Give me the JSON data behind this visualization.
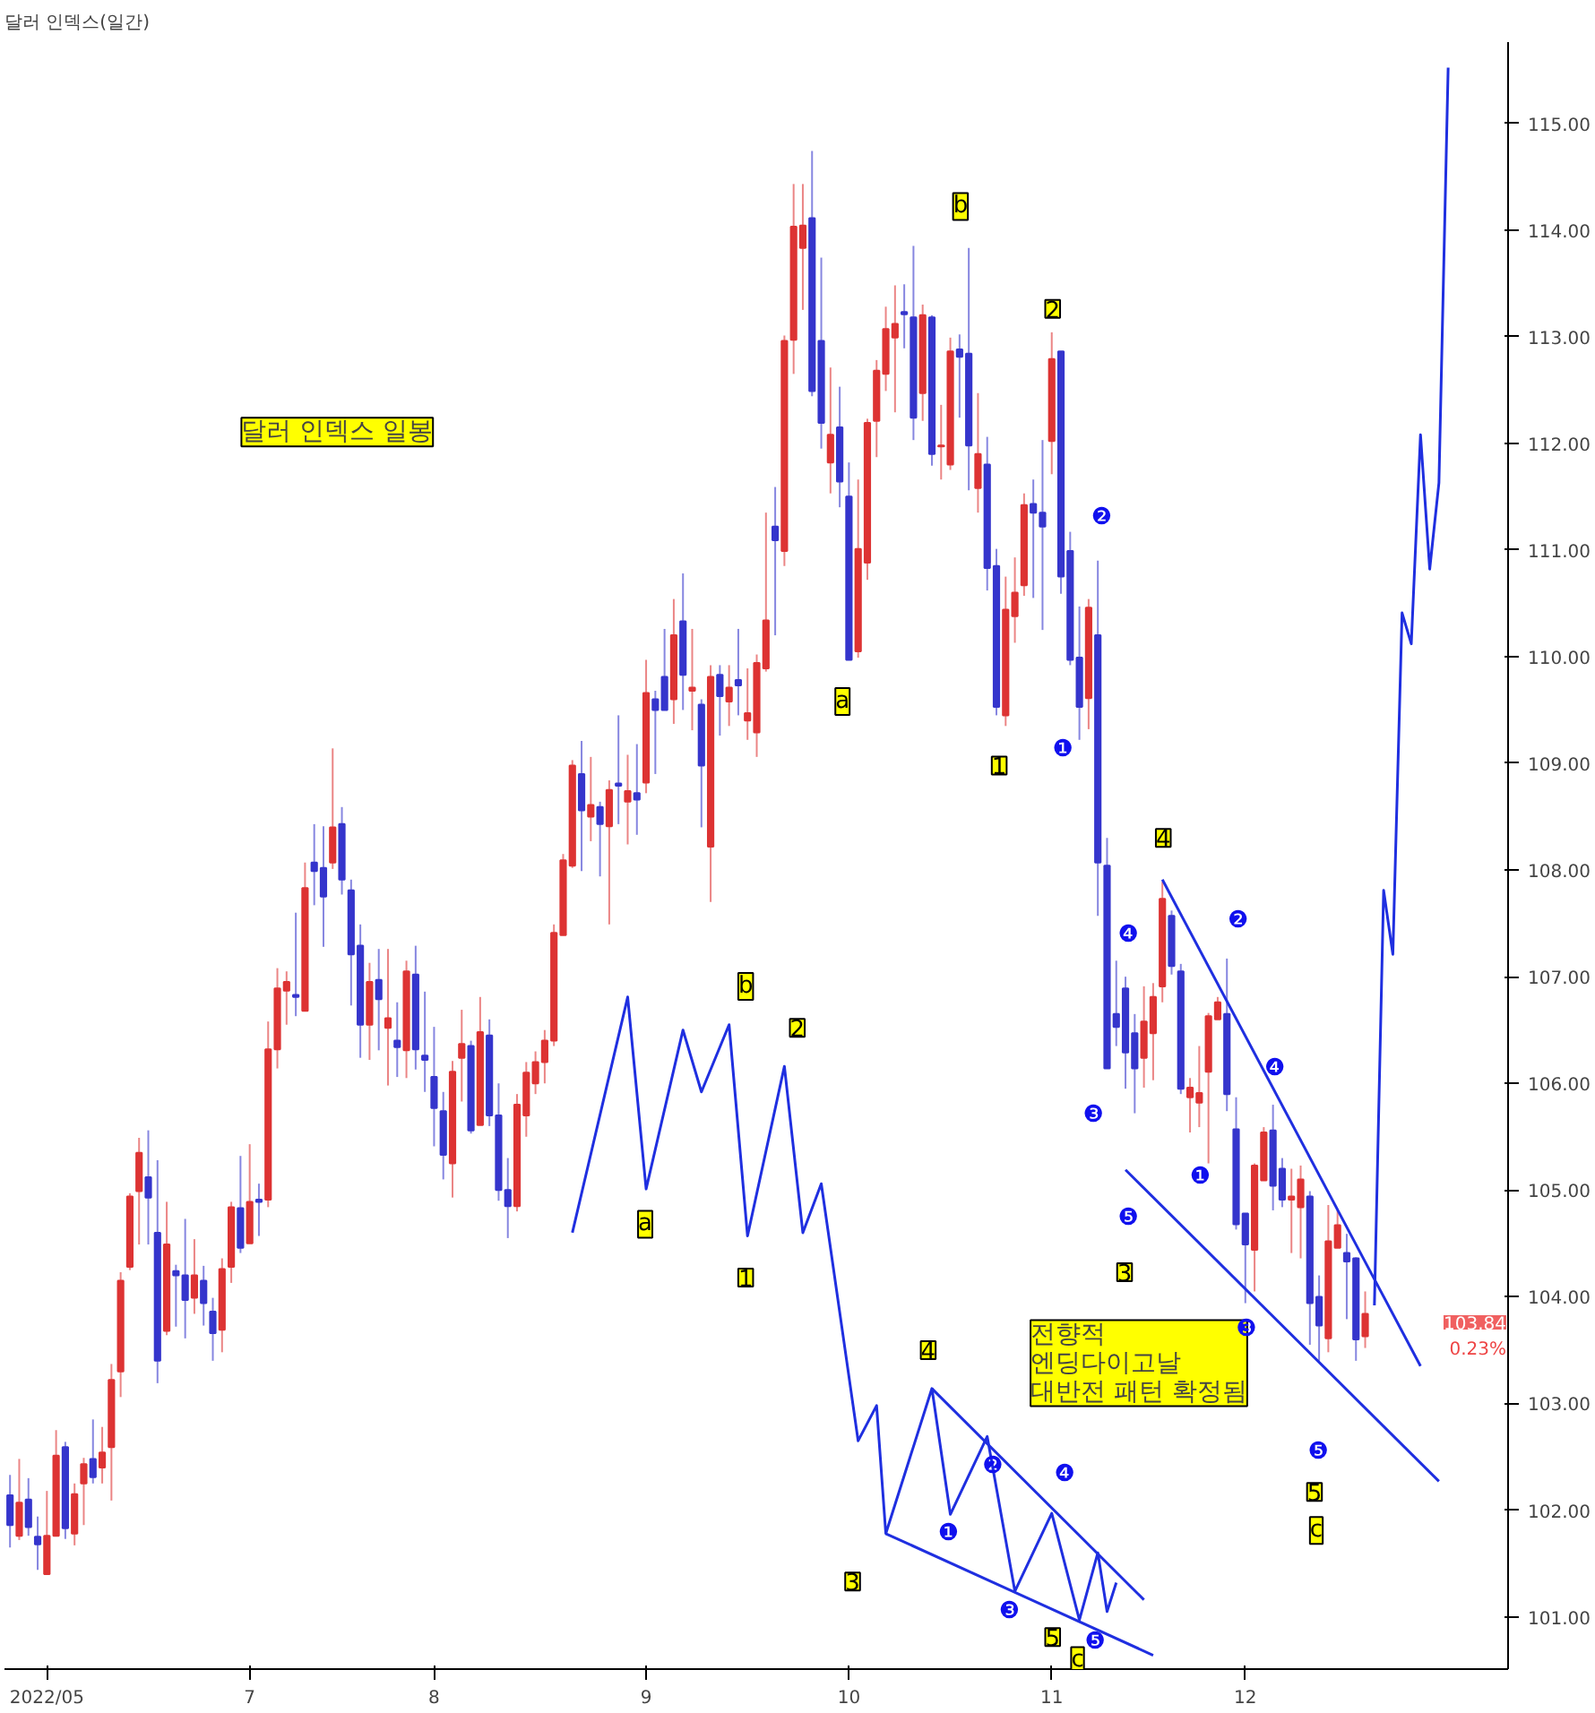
{
  "chart_data": {
    "type": "candlestick",
    "title": "달러 인덱스(일간)",
    "categories": [
      null,
      null,
      null,
      null,
      "2022/05",
      null,
      null,
      null,
      null,
      null,
      null,
      null,
      null,
      null,
      null,
      null,
      null,
      null,
      null,
      null,
      null,
      null,
      null,
      null,
      null,
      null,
      "7",
      null,
      null,
      null,
      null,
      null,
      null,
      null,
      null,
      null,
      null,
      null,
      null,
      null,
      null,
      null,
      null,
      null,
      null,
      null,
      "8",
      null,
      null,
      null,
      null,
      null,
      null,
      null,
      null,
      null,
      null,
      null,
      null,
      null,
      null,
      null,
      null,
      null,
      null,
      null,
      null,
      null,
      null,
      "9",
      null,
      null,
      null,
      null,
      null,
      null,
      null,
      null,
      null,
      null,
      null,
      null,
      null,
      null,
      null,
      null,
      null,
      null,
      null,
      null,
      null,
      "10",
      null,
      null,
      null,
      null,
      null,
      null,
      null,
      null,
      null,
      null,
      null,
      null,
      null,
      null,
      null,
      null,
      null,
      null,
      null,
      null,
      null,
      "11",
      null,
      null,
      null,
      null,
      null,
      null,
      null,
      null,
      null,
      null,
      null,
      null,
      null,
      null,
      null,
      null,
      null,
      null,
      null,
      null,
      "12",
      null,
      null,
      null,
      null,
      null,
      null,
      null,
      null,
      null,
      null,
      null,
      null,
      null,
      null,
      null,
      null,
      null,
      null,
      null,
      null,
      null,
      null
    ],
    "ohlc": [
      [
        102.14,
        102.33,
        101.65,
        101.86
      ],
      [
        101.76,
        102.48,
        101.72,
        102.07
      ],
      [
        102.1,
        102.3,
        101.76,
        101.84
      ],
      [
        101.75,
        101.94,
        101.44,
        101.68
      ],
      [
        101.4,
        102.18,
        101.4,
        101.76
      ],
      [
        101.76,
        102.75,
        101.76,
        102.51
      ],
      [
        102.59,
        102.64,
        101.73,
        101.83
      ],
      [
        101.78,
        102.25,
        101.67,
        102.15
      ],
      [
        102.25,
        102.49,
        101.86,
        102.43
      ],
      [
        102.48,
        102.85,
        102.25,
        102.31
      ],
      [
        102.4,
        102.78,
        102.25,
        102.54
      ],
      [
        102.59,
        103.37,
        102.09,
        103.22
      ],
      [
        103.3,
        104.23,
        103.06,
        104.15
      ],
      [
        104.28,
        104.97,
        104.25,
        104.94
      ],
      [
        104.99,
        105.49,
        104.49,
        105.35
      ],
      [
        105.12,
        105.56,
        104.49,
        104.93
      ],
      [
        104.6,
        105.28,
        103.19,
        103.4
      ],
      [
        103.68,
        104.89,
        103.64,
        104.49
      ],
      [
        104.24,
        104.3,
        103.72,
        104.2
      ],
      [
        104.2,
        104.73,
        103.61,
        103.97
      ],
      [
        103.99,
        104.54,
        103.84,
        104.2
      ],
      [
        104.15,
        104.29,
        103.73,
        103.94
      ],
      [
        103.86,
        103.99,
        103.4,
        103.66
      ],
      [
        103.69,
        104.36,
        103.48,
        104.26
      ],
      [
        104.28,
        104.89,
        104.13,
        104.84
      ],
      [
        104.83,
        105.32,
        104.41,
        104.46
      ],
      [
        104.5,
        105.43,
        104.5,
        104.89
      ],
      [
        104.91,
        105.06,
        104.57,
        104.89
      ],
      [
        104.91,
        106.58,
        104.84,
        106.32
      ],
      [
        106.32,
        107.08,
        106.14,
        106.89
      ],
      [
        106.87,
        107.05,
        106.55,
        106.95
      ],
      [
        106.83,
        107.6,
        106.63,
        106.81
      ],
      [
        106.68,
        108.07,
        106.68,
        107.83
      ],
      [
        108.07,
        108.43,
        107.67,
        107.99
      ],
      [
        108.02,
        108.41,
        107.28,
        107.75
      ],
      [
        108.07,
        109.14,
        108.01,
        108.4
      ],
      [
        108.43,
        108.59,
        107.77,
        107.91
      ],
      [
        107.81,
        107.91,
        106.73,
        107.21
      ],
      [
        107.29,
        107.49,
        106.24,
        106.55
      ],
      [
        106.55,
        107.13,
        106.22,
        106.95
      ],
      [
        106.97,
        107.26,
        106.31,
        106.79
      ],
      [
        106.52,
        107.26,
        105.98,
        106.61
      ],
      [
        106.4,
        106.76,
        106.06,
        106.34
      ],
      [
        106.31,
        107.15,
        106.05,
        107.05
      ],
      [
        107.02,
        107.29,
        106.13,
        106.32
      ],
      [
        106.26,
        106.86,
        105.92,
        106.22
      ],
      [
        106.06,
        106.53,
        105.41,
        105.77
      ],
      [
        105.74,
        105.92,
        105.1,
        105.33
      ],
      [
        105.25,
        106.21,
        104.93,
        106.11
      ],
      [
        106.24,
        106.69,
        105.83,
        106.37
      ],
      [
        106.35,
        106.4,
        105.53,
        105.56
      ],
      [
        105.61,
        106.81,
        105.61,
        106.48
      ],
      [
        106.45,
        106.6,
        105.6,
        105.7
      ],
      [
        105.7,
        106.0,
        104.9,
        105.0
      ],
      [
        105.0,
        105.3,
        104.55,
        104.85
      ],
      [
        104.85,
        105.9,
        104.8,
        105.8
      ],
      [
        105.7,
        106.2,
        105.5,
        106.1
      ],
      [
        106.0,
        106.3,
        105.9,
        106.2
      ],
      [
        106.2,
        106.5,
        106.0,
        106.4
      ],
      [
        106.4,
        107.49,
        106.35,
        107.41
      ],
      [
        107.39,
        108.15,
        107.39,
        108.09
      ],
      [
        108.04,
        109.03,
        108.02,
        108.98
      ],
      [
        108.9,
        109.21,
        107.99,
        108.56
      ],
      [
        108.5,
        109.06,
        108.27,
        108.61
      ],
      [
        108.59,
        108.64,
        107.94,
        108.43
      ],
      [
        108.41,
        108.84,
        107.49,
        108.75
      ],
      [
        108.81,
        109.45,
        108.43,
        108.79
      ],
      [
        108.64,
        109.08,
        108.24,
        108.74
      ],
      [
        108.72,
        109.18,
        108.33,
        108.66
      ],
      [
        108.82,
        109.97,
        108.72,
        109.66
      ],
      [
        109.6,
        109.68,
        108.9,
        109.5
      ],
      [
        109.81,
        110.26,
        109.5,
        109.5
      ],
      [
        109.6,
        110.54,
        109.37,
        110.2
      ],
      [
        110.33,
        110.78,
        109.5,
        109.83
      ],
      [
        109.68,
        110.26,
        109.31,
        109.71
      ],
      [
        109.55,
        109.6,
        108.4,
        108.98
      ],
      [
        108.22,
        109.92,
        107.7,
        109.81
      ],
      [
        109.83,
        109.92,
        109.26,
        109.63
      ],
      [
        109.58,
        109.92,
        109.35,
        109.71
      ],
      [
        109.78,
        110.26,
        109.45,
        109.73
      ],
      [
        109.4,
        109.89,
        109.22,
        109.47
      ],
      [
        109.29,
        110.02,
        109.06,
        109.94
      ],
      [
        109.89,
        111.35,
        109.86,
        110.34
      ],
      [
        111.22,
        111.59,
        110.2,
        111.09
      ],
      [
        110.99,
        113.01,
        110.85,
        112.96
      ],
      [
        112.97,
        114.43,
        112.65,
        114.03
      ],
      [
        113.83,
        114.43,
        113.25,
        114.04
      ],
      [
        114.11,
        114.74,
        112.44,
        112.49
      ],
      [
        112.96,
        113.74,
        111.95,
        112.19
      ],
      [
        111.82,
        112.71,
        111.53,
        112.08
      ],
      [
        112.15,
        112.53,
        111.4,
        111.64
      ],
      [
        111.5,
        111.82,
        109.97,
        109.97
      ],
      [
        110.05,
        111.66,
        109.99,
        111.01
      ],
      [
        110.88,
        112.23,
        110.72,
        112.19
      ],
      [
        112.21,
        112.78,
        111.87,
        112.68
      ],
      [
        112.65,
        113.28,
        112.49,
        113.07
      ],
      [
        112.99,
        113.48,
        112.29,
        113.12
      ],
      [
        113.23,
        113.49,
        112.89,
        113.21
      ],
      [
        113.18,
        113.85,
        112.03,
        112.24
      ],
      [
        112.47,
        113.3,
        112.21,
        113.2
      ],
      [
        113.18,
        113.2,
        111.79,
        111.9
      ],
      [
        111.97,
        112.36,
        111.66,
        111.98
      ],
      [
        111.8,
        112.99,
        111.75,
        112.86
      ],
      [
        112.88,
        113.02,
        112.24,
        112.81
      ],
      [
        112.84,
        113.83,
        111.56,
        111.98
      ],
      [
        111.58,
        112.47,
        111.35,
        111.9
      ],
      [
        111.8,
        112.06,
        110.62,
        110.83
      ],
      [
        110.85,
        111.01,
        109.45,
        109.53
      ],
      [
        109.45,
        110.75,
        109.35,
        110.44
      ],
      [
        110.38,
        110.93,
        110.13,
        110.6
      ],
      [
        110.67,
        111.53,
        110.57,
        111.42
      ],
      [
        111.43,
        111.66,
        110.55,
        111.35
      ],
      [
        111.35,
        112.03,
        110.25,
        111.22
      ],
      [
        112.02,
        113.04,
        111.71,
        112.79
      ],
      [
        112.86,
        112.86,
        110.59,
        110.75
      ],
      [
        110.99,
        111.17,
        109.92,
        109.97
      ],
      [
        109.99,
        110.47,
        109.22,
        109.53
      ],
      [
        109.61,
        110.54,
        109.32,
        110.46
      ],
      [
        110.2,
        110.9,
        107.57,
        108.07
      ],
      [
        108.04,
        108.3,
        106.14,
        106.14
      ],
      [
        106.65,
        107.15,
        106.35,
        106.53
      ],
      [
        106.89,
        107.0,
        105.95,
        106.29
      ],
      [
        106.47,
        106.65,
        105.72,
        106.14
      ],
      [
        106.24,
        106.91,
        105.96,
        106.58
      ],
      [
        106.47,
        106.94,
        106.03,
        106.81
      ],
      [
        106.91,
        107.89,
        106.76,
        107.73
      ],
      [
        107.57,
        107.62,
        107.02,
        107.1
      ],
      [
        107.05,
        107.12,
        105.9,
        105.95
      ],
      [
        105.87,
        106.05,
        105.54,
        105.96
      ],
      [
        105.82,
        106.35,
        105.59,
        105.91
      ],
      [
        106.11,
        106.66,
        105.25,
        106.63
      ],
      [
        106.6,
        106.81,
        106.6,
        106.76
      ],
      [
        106.65,
        107.17,
        105.74,
        105.9
      ],
      [
        105.57,
        105.87,
        104.63,
        104.68
      ],
      [
        104.78,
        104.78,
        103.94,
        104.49
      ],
      [
        104.44,
        105.25,
        104.05,
        105.23
      ],
      [
        105.09,
        105.59,
        105.09,
        105.54
      ],
      [
        105.56,
        105.8,
        104.81,
        105.04
      ],
      [
        105.2,
        105.3,
        104.84,
        104.91
      ],
      [
        104.91,
        105.2,
        104.41,
        104.94
      ],
      [
        104.84,
        105.23,
        104.36,
        105.1
      ],
      [
        104.94,
        104.99,
        103.55,
        103.94
      ],
      [
        104.0,
        104.2,
        103.4,
        103.73
      ],
      [
        103.61,
        104.86,
        103.48,
        104.52
      ],
      [
        104.46,
        104.81,
        104.46,
        104.67
      ],
      [
        104.41,
        104.59,
        103.79,
        104.33
      ],
      [
        104.36,
        104.37,
        103.4,
        103.6
      ],
      [
        103.63,
        104.05,
        103.52,
        103.84
      ],
      null,
      null,
      null,
      null,
      null,
      null,
      null,
      null,
      null
    ],
    "colors": [
      "#3535cc",
      "#dd3333",
      "#3535cc",
      "#3535cc",
      "#dd3333",
      "#dd3333",
      "#3535cc",
      "#dd3333",
      "#dd3333",
      "#3535cc",
      "#dd3333",
      "#dd3333",
      "#dd3333",
      "#dd3333",
      "#dd3333",
      "#3535cc",
      "#3535cc",
      "#dd3333",
      "#3535cc",
      "#3535cc",
      "#dd3333",
      "#3535cc",
      "#3535cc",
      "#dd3333",
      "#dd3333",
      "#3535cc",
      "#dd3333",
      "#3535cc",
      "#dd3333",
      "#dd3333",
      "#dd3333",
      "#3535cc",
      "#dd3333",
      "#3535cc",
      "#3535cc",
      "#dd3333",
      "#3535cc",
      "#3535cc",
      "#3535cc",
      "#dd3333",
      "#3535cc",
      "#dd3333",
      "#3535cc",
      "#dd3333",
      "#3535cc",
      "#3535cc",
      "#3535cc",
      "#3535cc",
      "#dd3333",
      "#dd3333",
      "#3535cc",
      "#dd3333",
      "#3535cc",
      "#3535cc",
      "#3535cc",
      "#dd3333",
      "#dd3333",
      "#dd3333",
      "#dd3333",
      "#dd3333",
      "#dd3333",
      "#dd3333",
      "#3535cc",
      "#dd3333",
      "#3535cc",
      "#dd3333",
      "#3535cc",
      "#dd3333",
      "#3535cc",
      "#dd3333",
      "#3535cc",
      "#3535cc",
      "#dd3333",
      "#3535cc",
      "#dd3333",
      "#3535cc",
      "#dd3333",
      "#3535cc",
      "#dd3333",
      "#3535cc",
      "#dd3333",
      "#dd3333",
      "#dd3333",
      "#3535cc",
      "#dd3333",
      "#dd3333",
      "#dd3333",
      "#3535cc",
      "#3535cc",
      "#dd3333",
      "#3535cc",
      "#3535cc",
      "#dd3333",
      "#dd3333",
      "#dd3333",
      "#dd3333",
      "#dd3333",
      "#3535cc",
      "#3535cc",
      "#dd3333",
      "#3535cc",
      "#dd3333",
      "#dd3333",
      "#3535cc",
      "#3535cc",
      "#dd3333",
      "#3535cc",
      "#3535cc",
      "#dd3333",
      "#dd3333",
      "#dd3333",
      "#3535cc",
      "#3535cc",
      "#dd3333",
      "#3535cc",
      "#3535cc",
      "#3535cc",
      "#dd3333",
      "#3535cc",
      "#3535cc",
      "#3535cc",
      "#3535cc",
      "#3535cc",
      "#dd3333",
      "#dd3333",
      "#dd3333",
      "#3535cc",
      "#3535cc",
      "#dd3333",
      "#dd3333",
      "#dd3333",
      "#dd3333",
      "#3535cc",
      "#3535cc",
      "#3535cc",
      "#dd3333",
      "#dd3333",
      "#3535cc",
      "#3535cc",
      "#dd3333",
      "#dd3333",
      "#3535cc",
      "#3535cc",
      "#dd3333",
      "#dd3333",
      "#3535cc",
      "#3535cc",
      "#dd3333",
      null,
      null,
      null,
      null,
      null,
      null,
      null,
      null,
      null
    ],
    "series": [
      {
        "type": "line",
        "color": "#1f2fe0",
        "values": [
          null,
          null,
          null,
          null,
          null,
          null,
          null,
          null,
          null,
          null,
          null,
          null,
          null,
          null,
          null,
          null,
          null,
          null,
          null,
          null,
          null,
          null,
          null,
          null,
          null,
          null,
          null,
          null,
          null,
          null,
          null,
          null,
          null,
          null,
          null,
          null,
          null,
          null,
          null,
          null,
          null,
          null,
          null,
          null,
          null,
          null,
          null,
          null,
          null,
          null,
          null,
          null,
          null,
          null,
          null,
          null,
          null,
          null,
          null,
          null,
          null,
          104.6,
          null,
          null,
          null,
          null,
          null,
          106.81,
          null,
          105.01,
          null,
          null,
          null,
          106.5,
          null,
          105.92,
          null,
          null,
          106.55,
          null,
          104.57,
          null,
          null,
          null,
          106.16,
          null,
          104.6,
          null,
          105.06,
          null,
          null,
          null,
          102.65,
          null,
          102.98,
          101.78,
          null,
          null,
          null,
          null,
          103.14,
          null,
          101.96,
          null,
          null,
          null,
          102.69,
          null,
          null,
          101.24,
          null,
          null,
          null,
          101.97,
          null,
          null,
          100.97,
          null,
          101.6,
          101.05,
          101.32,
          null,
          null,
          null,
          null,
          null,
          null,
          null,
          null,
          null,
          null,
          null,
          null,
          null,
          null,
          null,
          null,
          null,
          null,
          null,
          null,
          null,
          null,
          null,
          null,
          null,
          null,
          null,
          null,
          null,
          null,
          null,
          null,
          null,
          null,
          null,
          null
        ]
      },
      {
        "type": "line",
        "color": "#1f2fe0",
        "values": [
          null,
          null,
          null,
          null,
          null,
          null,
          null,
          null,
          null,
          null,
          null,
          null,
          null,
          null,
          null,
          null,
          null,
          null,
          null,
          null,
          null,
          null,
          null,
          null,
          null,
          null,
          null,
          null,
          null,
          null,
          null,
          null,
          null,
          null,
          null,
          null,
          null,
          null,
          null,
          null,
          null,
          null,
          null,
          null,
          null,
          null,
          null,
          null,
          null,
          null,
          null,
          null,
          null,
          null,
          null,
          null,
          null,
          null,
          null,
          null,
          null,
          null,
          null,
          null,
          null,
          null,
          null,
          null,
          null,
          null,
          null,
          null,
          null,
          null,
          null,
          null,
          null,
          null,
          null,
          null,
          null,
          null,
          null,
          null,
          null,
          null,
          null,
          null,
          null,
          null,
          null,
          null,
          null,
          null,
          null,
          null,
          null,
          null,
          null,
          null,
          103.14,
          null,
          null,
          null,
          null,
          null,
          null,
          null,
          null,
          null,
          null,
          null,
          null,
          null,
          null,
          null,
          null,
          null,
          null,
          null,
          null,
          null,
          null,
          101.16,
          null,
          null,
          null,
          null,
          null,
          null,
          null,
          null,
          null,
          null,
          null,
          null,
          null,
          null,
          null,
          null,
          null,
          null,
          null,
          null,
          null,
          null,
          null,
          null,
          null,
          null,
          null,
          null,
          null,
          null,
          null,
          null,
          null
        ]
      },
      {
        "type": "line",
        "color": "#1f2fe0",
        "values": [
          null,
          null,
          null,
          null,
          null,
          null,
          null,
          null,
          null,
          null,
          null,
          null,
          null,
          null,
          null,
          null,
          null,
          null,
          null,
          null,
          null,
          null,
          null,
          null,
          null,
          null,
          null,
          null,
          null,
          null,
          null,
          null,
          null,
          null,
          null,
          null,
          null,
          null,
          null,
          null,
          null,
          null,
          null,
          null,
          null,
          null,
          null,
          null,
          null,
          null,
          null,
          null,
          null,
          null,
          null,
          null,
          null,
          null,
          null,
          null,
          null,
          null,
          null,
          null,
          null,
          null,
          null,
          null,
          null,
          null,
          null,
          null,
          null,
          null,
          null,
          null,
          null,
          null,
          null,
          null,
          null,
          null,
          null,
          null,
          null,
          null,
          null,
          null,
          null,
          null,
          null,
          null,
          null,
          null,
          null,
          101.78,
          null,
          null,
          null,
          null,
          null,
          null,
          null,
          null,
          null,
          null,
          null,
          null,
          null,
          null,
          null,
          null,
          null,
          null,
          null,
          null,
          null,
          null,
          null,
          null,
          null,
          null,
          null,
          null,
          100.64,
          null,
          null,
          null,
          null,
          null,
          null,
          null,
          null,
          null,
          null,
          null,
          null,
          null,
          null,
          null,
          null,
          null,
          null,
          null,
          null,
          null,
          null,
          null,
          null,
          null,
          null,
          null,
          null,
          null,
          null,
          null,
          null
        ]
      },
      {
        "type": "line",
        "color": "#1f2fe0",
        "values": [
          null,
          null,
          null,
          null,
          null,
          null,
          null,
          null,
          null,
          null,
          null,
          null,
          null,
          null,
          null,
          null,
          null,
          null,
          null,
          null,
          null,
          null,
          null,
          null,
          null,
          null,
          null,
          null,
          null,
          null,
          null,
          null,
          null,
          null,
          null,
          null,
          null,
          null,
          null,
          null,
          null,
          null,
          null,
          null,
          null,
          null,
          null,
          null,
          null,
          null,
          null,
          null,
          null,
          null,
          null,
          null,
          null,
          null,
          null,
          null,
          null,
          null,
          null,
          null,
          null,
          null,
          null,
          null,
          null,
          null,
          null,
          null,
          null,
          null,
          null,
          null,
          null,
          null,
          null,
          null,
          null,
          null,
          null,
          null,
          null,
          null,
          null,
          null,
          null,
          null,
          null,
          null,
          null,
          null,
          null,
          null,
          null,
          null,
          null,
          null,
          null,
          null,
          null,
          null,
          null,
          null,
          null,
          null,
          null,
          null,
          null,
          null,
          null,
          null,
          null,
          null,
          null,
          null,
          null,
          null,
          null,
          null,
          null,
          null,
          null,
          107.91,
          null,
          null,
          null,
          null,
          null,
          null,
          null,
          null,
          null,
          null,
          null,
          null,
          null,
          null,
          null,
          null,
          null,
          null,
          null,
          null,
          null,
          null,
          null,
          null,
          null,
          null,
          null,
          103.35,
          null,
          null,
          null
        ]
      },
      {
        "type": "line",
        "color": "#1f2fe0",
        "values": [
          null,
          null,
          null,
          null,
          null,
          null,
          null,
          null,
          null,
          null,
          null,
          null,
          null,
          null,
          null,
          null,
          null,
          null,
          null,
          null,
          null,
          null,
          null,
          null,
          null,
          null,
          null,
          null,
          null,
          null,
          null,
          null,
          null,
          null,
          null,
          null,
          null,
          null,
          null,
          null,
          null,
          null,
          null,
          null,
          null,
          null,
          null,
          null,
          null,
          null,
          null,
          null,
          null,
          null,
          null,
          null,
          null,
          null,
          null,
          null,
          null,
          null,
          null,
          null,
          null,
          null,
          null,
          null,
          null,
          null,
          null,
          null,
          null,
          null,
          null,
          null,
          null,
          null,
          null,
          null,
          null,
          null,
          null,
          null,
          null,
          null,
          null,
          null,
          null,
          null,
          null,
          null,
          null,
          null,
          null,
          null,
          null,
          null,
          null,
          null,
          null,
          null,
          null,
          null,
          null,
          null,
          null,
          null,
          null,
          null,
          null,
          null,
          null,
          null,
          null,
          null,
          null,
          null,
          null,
          null,
          null,
          105.19,
          null,
          null,
          null,
          null,
          null,
          null,
          null,
          null,
          null,
          null,
          null,
          null,
          null,
          null,
          null,
          null,
          null,
          null,
          null,
          null,
          null,
          null,
          null,
          null,
          null,
          null,
          null,
          null,
          null,
          null,
          null,
          null,
          null,
          102.27,
          null
        ]
      },
      {
        "type": "line",
        "color": "#1f2fe0",
        "values": [
          null,
          null,
          null,
          null,
          null,
          null,
          null,
          null,
          null,
          null,
          null,
          null,
          null,
          null,
          null,
          null,
          null,
          null,
          null,
          null,
          null,
          null,
          null,
          null,
          null,
          null,
          null,
          null,
          null,
          null,
          null,
          null,
          null,
          null,
          null,
          null,
          null,
          null,
          null,
          null,
          null,
          null,
          null,
          null,
          null,
          null,
          null,
          null,
          null,
          null,
          null,
          null,
          null,
          null,
          null,
          null,
          null,
          null,
          null,
          null,
          null,
          null,
          null,
          null,
          null,
          null,
          null,
          null,
          null,
          null,
          null,
          null,
          null,
          null,
          null,
          null,
          null,
          null,
          null,
          null,
          null,
          null,
          null,
          null,
          null,
          null,
          null,
          null,
          null,
          null,
          null,
          null,
          null,
          null,
          null,
          null,
          null,
          null,
          null,
          null,
          null,
          null,
          null,
          null,
          null,
          null,
          null,
          null,
          null,
          null,
          null,
          null,
          null,
          null,
          null,
          null,
          null,
          null,
          null,
          null,
          null,
          null,
          null,
          null,
          null,
          null,
          null,
          null,
          null,
          null,
          null,
          null,
          null,
          null,
          null,
          null,
          null,
          null,
          null,
          null,
          null,
          null,
          null,
          null,
          null,
          null,
          null,
          null,
          103.92,
          107.81,
          107.21,
          110.41,
          110.12,
          112.08,
          110.82,
          111.63,
          115.52
        ]
      }
    ],
    "ylim": [
      100.51,
      115.76
    ],
    "yticks": [
      {
        "value": 101,
        "label": "101.00"
      },
      {
        "value": 102,
        "label": "102.00"
      },
      {
        "value": 103,
        "label": "103.00"
      },
      {
        "value": 104,
        "label": "104.00"
      },
      {
        "value": 105,
        "label": "105.00"
      },
      {
        "value": 106,
        "label": "106.00"
      },
      {
        "value": 107,
        "label": "107.00"
      },
      {
        "value": 108,
        "label": "108.00"
      },
      {
        "value": 109,
        "label": "109.00"
      },
      {
        "value": 110,
        "label": "110.00"
      },
      {
        "value": 111,
        "label": "111.00"
      },
      {
        "value": 112,
        "label": "112.00"
      },
      {
        "value": 113,
        "label": "113.00"
      },
      {
        "value": 114,
        "label": "114.00"
      },
      {
        "value": 115,
        "label": "115.00"
      }
    ],
    "annotations": [
      "달러 인덱스 일봉",
      "전향적\n엔딩다이고날\n대반전 패턴 확정됨",
      "103.84",
      "0.23%",
      "a",
      "b",
      "2",
      "1",
      "4",
      "3",
      "5",
      "c",
      "a",
      "b",
      "2",
      "1",
      "4",
      "3",
      "5",
      "c",
      "❶",
      "❷",
      "❸",
      "❹",
      "❺",
      "❷",
      "❶",
      "❹",
      "❸",
      "❺",
      "❷",
      "❹",
      "❶",
      "❸",
      "❺"
    ]
  }
}
